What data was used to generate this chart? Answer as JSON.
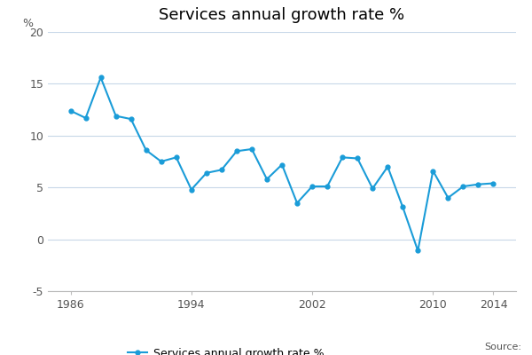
{
  "title": "Services annual growth rate %",
  "percent_label": "%",
  "legend_label": "Services annual growth rate %",
  "source_text": "Source:",
  "line_color": "#1a9cd8",
  "marker_color": "#1a9cd8",
  "background_color": "#ffffff",
  "grid_color": "#c8d8e8",
  "years": [
    1986,
    1987,
    1988,
    1989,
    1990,
    1991,
    1992,
    1993,
    1994,
    1995,
    1996,
    1997,
    1998,
    1999,
    2000,
    2001,
    2002,
    2003,
    2004,
    2005,
    2006,
    2007,
    2008,
    2009,
    2010,
    2011,
    2012,
    2013,
    2014
  ],
  "values": [
    12.4,
    11.7,
    15.6,
    11.9,
    11.6,
    8.6,
    7.5,
    7.9,
    4.8,
    6.4,
    6.7,
    8.5,
    8.7,
    5.8,
    7.2,
    3.5,
    5.1,
    5.1,
    7.9,
    7.8,
    4.9,
    7.0,
    3.1,
    -1.1,
    6.6,
    4.0,
    5.1,
    5.3,
    5.4
  ],
  "xlim": [
    1984.5,
    2015.5
  ],
  "ylim": [
    -5,
    20
  ],
  "yticks": [
    -5,
    0,
    5,
    10,
    15,
    20
  ],
  "xticks": [
    1986,
    1994,
    2002,
    2010,
    2014
  ],
  "title_fontsize": 13,
  "axis_fontsize": 9,
  "legend_fontsize": 9,
  "source_fontsize": 8,
  "tick_label_color": "#555555",
  "spine_color": "#bbbbbb"
}
